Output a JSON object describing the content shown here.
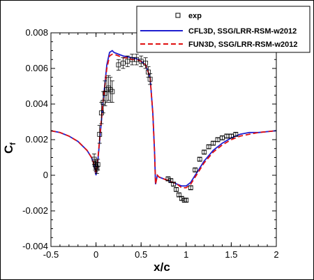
{
  "chart_data": {
    "type": "line",
    "xlabel": "x/c",
    "ylabel": "C",
    "ylabel_sub": "f",
    "xlim": [
      -0.5,
      2
    ],
    "ylim": [
      -0.004,
      0.008
    ],
    "xticks": [
      "-0.5",
      "0",
      "0.5",
      "1",
      "1.5",
      "2"
    ],
    "yticks": [
      "-0.004",
      "-0.002",
      "0",
      "0.002",
      "0.004",
      "0.006",
      "0.008"
    ],
    "legend": {
      "placement": "top-right",
      "entries": [
        "exp",
        "CFL3D, SSG/LRR-RSM-w2012",
        "FUN3D, SSG/LRR-RSM-w2012"
      ]
    },
    "series": [
      {
        "name": "CFL3D, SSG/LRR-RSM-w2012",
        "color": "#1f1fd0",
        "style": "solid",
        "x": [
          -0.5,
          -0.4,
          -0.3,
          -0.2,
          -0.1,
          -0.05,
          -0.02,
          0.0,
          0.02,
          0.05,
          0.08,
          0.1,
          0.12,
          0.15,
          0.18,
          0.2,
          0.25,
          0.3,
          0.35,
          0.4,
          0.45,
          0.5,
          0.55,
          0.6,
          0.63,
          0.65,
          0.66,
          0.68,
          0.7,
          0.75,
          0.8,
          0.85,
          0.9,
          0.95,
          1.0,
          1.05,
          1.1,
          1.2,
          1.3,
          1.4,
          1.5,
          1.6,
          1.7,
          1.8,
          1.9,
          2.0
        ],
        "y": [
          0.0025,
          0.0024,
          0.0022,
          0.0019,
          0.0014,
          0.001,
          0.0006,
          0.0,
          0.0008,
          0.0025,
          0.0042,
          0.0052,
          0.0062,
          0.0069,
          0.007,
          0.0069,
          0.0068,
          0.0067,
          0.00665,
          0.0066,
          0.00655,
          0.0064,
          0.0062,
          0.0055,
          0.0035,
          0.0012,
          -0.0005,
          0.0,
          -0.0001,
          -0.0002,
          -0.0003,
          -0.0004,
          -0.0005,
          -0.0006,
          -0.0006,
          -0.0004,
          0.0,
          0.0008,
          0.0014,
          0.0018,
          0.0021,
          0.0023,
          0.0024,
          0.0024,
          0.00245,
          0.0025
        ]
      },
      {
        "name": "FUN3D, SSG/LRR-RSM-w2012",
        "color": "#e01010",
        "style": "dashed",
        "x": [
          -0.5,
          -0.4,
          -0.3,
          -0.2,
          -0.1,
          -0.05,
          -0.02,
          0.0,
          0.02,
          0.05,
          0.08,
          0.1,
          0.12,
          0.15,
          0.18,
          0.2,
          0.25,
          0.3,
          0.35,
          0.4,
          0.45,
          0.5,
          0.55,
          0.6,
          0.63,
          0.65,
          0.66,
          0.68,
          0.7,
          0.75,
          0.8,
          0.85,
          0.9,
          0.95,
          1.0,
          1.05,
          1.1,
          1.2,
          1.3,
          1.4,
          1.5,
          1.6,
          1.7,
          1.8,
          1.9,
          2.0
        ],
        "y": [
          0.0025,
          0.0024,
          0.0022,
          0.0019,
          0.0014,
          0.001,
          0.0006,
          0.0001,
          0.0009,
          0.0026,
          0.0042,
          0.0051,
          0.006,
          0.0067,
          0.0068,
          0.0068,
          0.0067,
          0.0066,
          0.0066,
          0.0065,
          0.0065,
          0.0064,
          0.0062,
          0.0055,
          0.0035,
          0.0012,
          -0.0005,
          0.0,
          -0.0001,
          -0.0002,
          -0.0003,
          -0.0004,
          -0.0005,
          -0.0007,
          -0.0007,
          -0.0005,
          -0.0001,
          0.0007,
          0.0013,
          0.0017,
          0.002,
          0.0022,
          0.0023,
          0.0024,
          0.00245,
          0.0025
        ]
      },
      {
        "name": "exp",
        "color": "#000000",
        "style": "markers",
        "x": [
          -0.02,
          -0.01,
          0.0,
          0.01,
          0.02,
          0.04,
          0.06,
          0.08,
          0.1,
          0.12,
          0.14,
          0.16,
          0.18,
          0.25,
          0.3,
          0.35,
          0.4,
          0.45,
          0.5,
          0.55,
          0.58,
          0.6,
          0.8,
          0.83,
          0.86,
          0.89,
          0.92,
          0.95,
          0.98,
          1.0,
          1.05,
          1.1,
          1.15,
          1.2,
          1.25,
          1.3,
          1.35,
          1.4,
          1.45,
          1.5,
          1.55
        ],
        "y": [
          0.0009,
          0.0006,
          0.0005,
          0.0004,
          0.0006,
          0.0023,
          0.0035,
          0.0041,
          0.0046,
          0.0048,
          0.0049,
          0.0048,
          0.0047,
          0.0062,
          0.0063,
          0.0064,
          0.0065,
          0.0065,
          0.0064,
          0.0063,
          0.0058,
          0.0054,
          -0.0002,
          -0.0003,
          -0.0005,
          -0.0008,
          -0.0011,
          -0.0013,
          -0.0014,
          -0.0014,
          -0.0007,
          0.0003,
          0.0009,
          0.0013,
          0.0016,
          0.0018,
          0.002,
          0.0021,
          0.0022,
          0.0022,
          0.0023
        ],
        "err": [
          0.0003,
          0.0003,
          0.0003,
          0.0003,
          0.0003,
          0.0005,
          0.0006,
          0.0006,
          0.0007,
          0.0007,
          0.0007,
          0.0007,
          0.0006,
          0.0003,
          0.0003,
          0.0003,
          0.0003,
          0.0003,
          0.0003,
          0.0003,
          0.0003,
          0.0003,
          0.0001,
          0.0001,
          0.0001,
          0.0001,
          0.0001,
          0.0001,
          0.0001,
          0.0001,
          0.0001,
          0.0001,
          0.0001,
          0.0001,
          0.0001,
          0.0001,
          0.0001,
          0.0001,
          0.0001,
          0.0001,
          0.0001
        ]
      }
    ]
  }
}
